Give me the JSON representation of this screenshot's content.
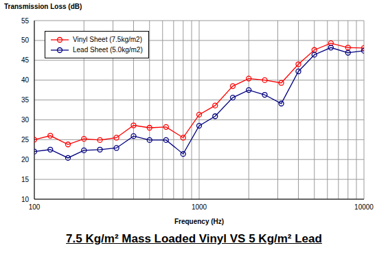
{
  "chart_data": {
    "type": "line",
    "title": "7.5 Kg/m² Mass Loaded Vinyl VS 5 Kg/m² Lead",
    "x_label": "Frequency (Hz)",
    "y_label": "Transmission Loss (dB)",
    "x": [
      100,
      125,
      160,
      200,
      250,
      315,
      400,
      500,
      630,
      800,
      1000,
      1250,
      1600,
      2000,
      2500,
      3150,
      4000,
      5000,
      6300,
      8000,
      10000
    ],
    "series": [
      {
        "name": "Vinyl Sheet (7.5kg/m2)",
        "color": "#ff0000",
        "marker": "circle",
        "values": [
          25,
          26,
          23.8,
          25.2,
          24.9,
          25.5,
          28.6,
          28,
          28.2,
          25.5,
          31.3,
          33.6,
          38.5,
          40.4,
          40,
          39.3,
          44,
          47.6,
          49.3,
          48.2,
          48.1
        ]
      },
      {
        "name": "Lead Sheet (5.0kg/m2)",
        "color": "#000080",
        "marker": "circle",
        "values": [
          22,
          22.5,
          20.4,
          22.3,
          22.5,
          22.9,
          25.9,
          24.9,
          24.9,
          21.4,
          28.5,
          30.9,
          35.6,
          37.5,
          36.3,
          34.1,
          42.2,
          46.4,
          48.2,
          46.9,
          47.4
        ]
      }
    ],
    "xlim": [
      100,
      10000
    ],
    "ylim": [
      10,
      55
    ],
    "xticks": [
      100,
      1000,
      10000
    ],
    "yticks": [
      10,
      15,
      20,
      25,
      30,
      35,
      40,
      45,
      50,
      55
    ],
    "log": "x",
    "grid": true,
    "legend": "upper left"
  }
}
